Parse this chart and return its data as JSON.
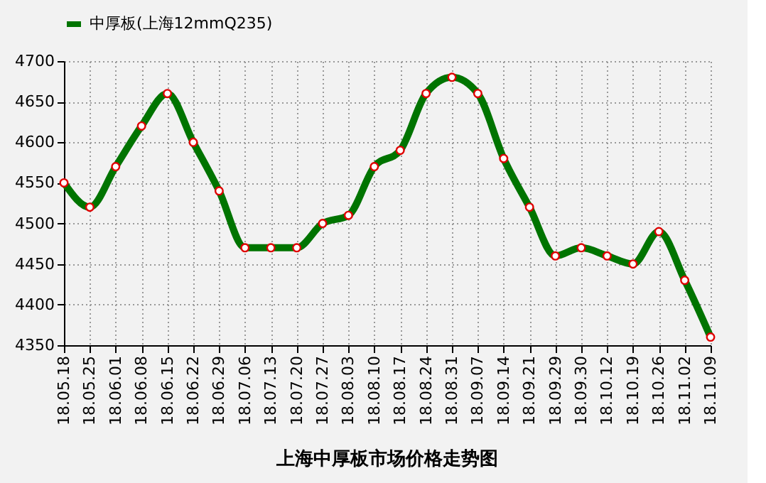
{
  "chart_data": {
    "type": "line",
    "title": "上海中厚板市场价格走势图",
    "legend": "top",
    "categories": [
      "18.05.18",
      "18.05.25",
      "18.06.01",
      "18.06.08",
      "18.06.15",
      "18.06.22",
      "18.06.29",
      "18.07.06",
      "18.07.13",
      "18.07.20",
      "18.07.27",
      "18.08.03",
      "18.08.10",
      "18.08.17",
      "18.08.24",
      "18.08.31",
      "18.09.07",
      "18.09.14",
      "18.09.21",
      "18.09.29",
      "18.09.30",
      "18.10.12",
      "18.10.19",
      "18.10.26",
      "18.11.02",
      "18.11.09"
    ],
    "series": [
      {
        "name": "中厚板(上海12mmQ235)",
        "color": "#007400",
        "values": [
          4550,
          4520,
          4570,
          4620,
          4660,
          4600,
          4540,
          4470,
          4470,
          4470,
          4500,
          4510,
          4570,
          4590,
          4660,
          4680,
          4660,
          4580,
          4520,
          4460,
          4470,
          4460,
          4450,
          4490,
          4430,
          4360
        ]
      }
    ],
    "ylim": [
      4350,
      4700
    ],
    "yticks": [
      4350,
      4400,
      4450,
      4500,
      4550,
      4600,
      4650,
      4700
    ],
    "grid": true,
    "marker": "circle",
    "line_style": "solid"
  }
}
